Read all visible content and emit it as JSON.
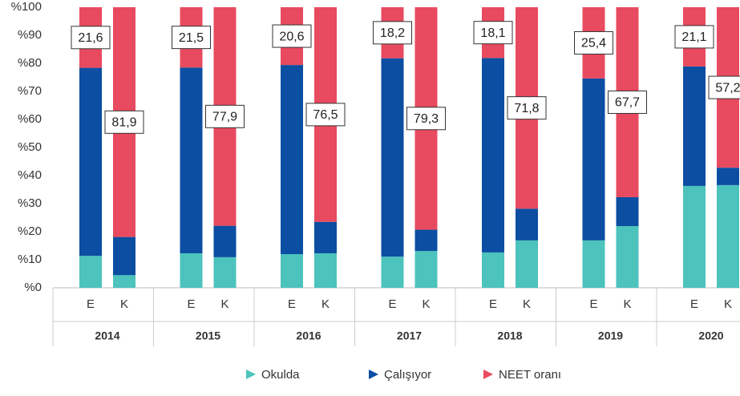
{
  "chart_data": {
    "type": "stacked_bar",
    "groups": [
      "2014",
      "2015",
      "2016",
      "2017",
      "2018",
      "2019",
      "2020"
    ],
    "categories": [
      "E",
      "K",
      "E",
      "K",
      "E",
      "K",
      "E",
      "K",
      "E",
      "K",
      "E",
      "K",
      "E",
      "K"
    ],
    "series": [
      {
        "name": "Okulda",
        "color": "#4cc3bc",
        "values": [
          11.4,
          4.5,
          12.3,
          10.9,
          12.0,
          12.3,
          11.1,
          13.1,
          12.6,
          16.9,
          16.9,
          22.0,
          36.3,
          36.6
        ]
      },
      {
        "name": "Çalışıyor",
        "color": "#0b4ea2",
        "values": [
          67.0,
          13.6,
          66.2,
          11.2,
          67.4,
          11.2,
          70.7,
          7.6,
          69.3,
          11.3,
          57.7,
          10.3,
          42.6,
          6.2
        ]
      },
      {
        "name": "NEET oranı",
        "color": "#e84a5f",
        "values": [
          21.6,
          81.9,
          21.5,
          77.9,
          20.6,
          76.5,
          18.2,
          79.3,
          18.1,
          71.8,
          25.4,
          67.7,
          21.1,
          57.2
        ],
        "value_labels": [
          "21,6",
          "81,9",
          "21,5",
          "77,9",
          "20,6",
          "76,5",
          "18,2",
          "79,3",
          "18,1",
          "71,8",
          "25,4",
          "67,7",
          "21,1",
          "57,2"
        ]
      }
    ],
    "ylim": [
      0,
      100
    ],
    "yticks": [
      {
        "value": 0,
        "label": "%0"
      },
      {
        "value": 10,
        "label": "%10"
      },
      {
        "value": 20,
        "label": "%20"
      },
      {
        "value": 30,
        "label": "%30"
      },
      {
        "value": 40,
        "label": "%40"
      },
      {
        "value": 50,
        "label": "%50"
      },
      {
        "value": 60,
        "label": "%60"
      },
      {
        "value": 70,
        "label": "%70"
      },
      {
        "value": 80,
        "label": "%80"
      },
      {
        "value": 90,
        "label": "%90"
      },
      {
        "value": 100,
        "label": "%100"
      }
    ],
    "legend": "bottom"
  }
}
